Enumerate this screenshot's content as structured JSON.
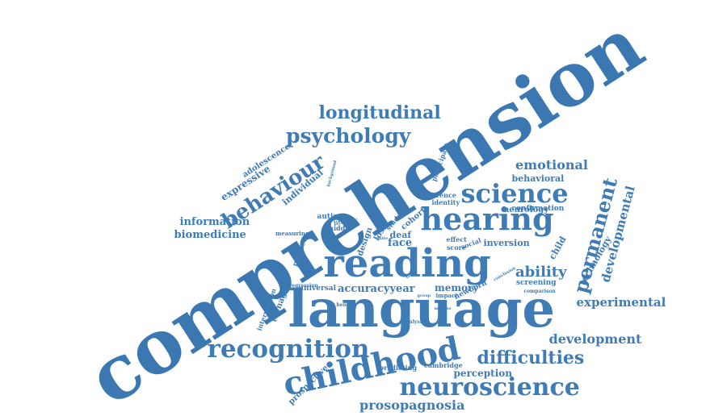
{
  "words": [
    {
      "text": "comprehension",
      "color": "#3b78b2"
    },
    {
      "text": "language",
      "color": "#3f7bb4"
    },
    {
      "text": "reading",
      "color": "#3f7bb4"
    },
    {
      "text": "hearing",
      "color": "#3f7bb4"
    },
    {
      "text": "childhood",
      "color": "#3f7bb4"
    },
    {
      "text": "recognition",
      "color": "#3f7bb4"
    },
    {
      "text": "science",
      "color": "#3f7bb4"
    },
    {
      "text": "neuroscience",
      "color": "#3f7bb4"
    },
    {
      "text": "psychology",
      "color": "#3f7bb4"
    },
    {
      "text": "longitudinal",
      "color": "#3f7bb4"
    },
    {
      "text": "behaviour",
      "color": "#3f7bb4"
    },
    {
      "text": "permanent",
      "color": "#3f7bb4"
    },
    {
      "text": "difficulties",
      "color": "#3f7bb4"
    },
    {
      "text": "development",
      "color": "#3f7bb4"
    },
    {
      "text": "emotional",
      "color": "#3f7bb4"
    },
    {
      "text": "ability",
      "color": "#3f7bb4"
    },
    {
      "text": "experimental",
      "color": "#3f7bb4"
    },
    {
      "text": "developmental",
      "color": "#3f7bb4"
    },
    {
      "text": "prosopagnosia",
      "color": "#3f7bb4"
    },
    {
      "text": "expressive",
      "color": "#3f7bb4"
    },
    {
      "text": "information",
      "color": "#3f7bb4"
    },
    {
      "text": "biomedicine",
      "color": "#3f7bb4"
    },
    {
      "text": "memory",
      "color": "#3f7bb4"
    },
    {
      "text": "accuracy",
      "color": "#3f7bb4"
    },
    {
      "text": "year",
      "color": "#3f7bb4"
    },
    {
      "text": "face",
      "color": "#3f7bb4"
    },
    {
      "text": "perception",
      "color": "#3f7bb4"
    },
    {
      "text": "child",
      "color": "#3f7bb4"
    },
    {
      "text": "technology",
      "color": "#3f7bb4"
    },
    {
      "text": "behavioral",
      "color": "#3f7bb4"
    },
    {
      "text": "teenager",
      "color": "#3f7bb4"
    },
    {
      "text": "individual",
      "color": "#3f7bb4"
    },
    {
      "text": "adolescence",
      "color": "#3f7bb4"
    },
    {
      "text": "prospective",
      "color": "#3f7bb4"
    },
    {
      "text": "neurology",
      "color": "#3f7bb4"
    },
    {
      "text": "confirmation",
      "color": "#3f7bb4"
    },
    {
      "text": "inversion",
      "color": "#3f7bb4"
    },
    {
      "text": "screening",
      "color": "#3f7bb4"
    },
    {
      "text": "autism",
      "color": "#3f7bb4"
    },
    {
      "text": "deaf",
      "color": "#3f7bb4"
    },
    {
      "text": "cohort",
      "color": "#3f7bb4"
    },
    {
      "text": "loss",
      "color": "#3f7bb4"
    },
    {
      "text": "design",
      "color": "#3f7bb4"
    },
    {
      "text": "middle",
      "color": "#3f7bb4"
    },
    {
      "text": "literacy",
      "color": "#3f7bb4"
    },
    {
      "text": "measuring",
      "color": "#3f7bb4"
    },
    {
      "text": "predict",
      "color": "#3f7bb4"
    },
    {
      "text": "universal",
      "color": "#3f7bb4"
    },
    {
      "text": "score",
      "color": "#3f7bb4"
    },
    {
      "text": "social",
      "color": "#3f7bb4"
    },
    {
      "text": "effect",
      "color": "#3f7bb4"
    },
    {
      "text": "newborn",
      "color": "#3f7bb4"
    },
    {
      "text": "difference",
      "color": "#3f7bb4"
    },
    {
      "text": "identity",
      "color": "#3f7bb4"
    },
    {
      "text": "participant",
      "color": "#3f7bb4"
    },
    {
      "text": "study",
      "color": "#3f7bb4"
    },
    {
      "text": "intervention",
      "color": "#3f7bb4"
    },
    {
      "text": "cambridge",
      "color": "#3f7bb4"
    },
    {
      "text": "predicting",
      "color": "#3f7bb4"
    },
    {
      "text": "analysis",
      "color": "#3f7bb4"
    },
    {
      "text": "impact",
      "color": "#3f7bb4"
    },
    {
      "text": "benefit",
      "color": "#3f7bb4"
    },
    {
      "text": "regression",
      "color": "#3f7bb4"
    },
    {
      "text": "background",
      "color": "#3f7bb4"
    },
    {
      "text": "unite",
      "color": "#3f7bb4"
    },
    {
      "text": "comparison",
      "color": "#3f7bb4"
    },
    {
      "text": "conclusion",
      "color": "#3f7bb4"
    },
    {
      "text": "months",
      "color": "#3f7bb4"
    },
    {
      "text": "group",
      "color": "#3f7bb4"
    },
    {
      "text": "time",
      "color": "#3f7bb4"
    }
  ]
}
